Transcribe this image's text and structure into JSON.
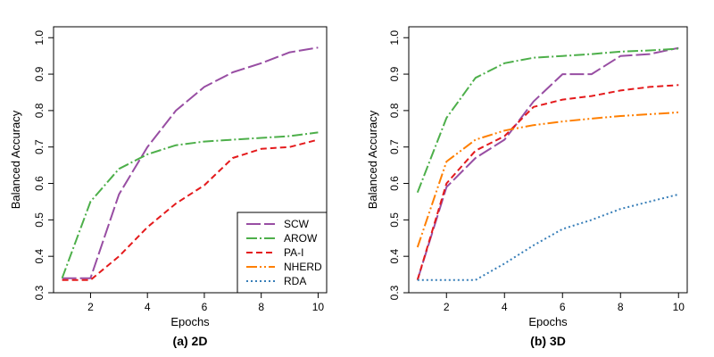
{
  "chart_data": [
    {
      "type": "line",
      "caption": "(a) 2D",
      "xlabel": "Epochs",
      "ylabel": "Balanced Accuracy",
      "xlim": [
        0.7,
        10.3
      ],
      "ylim": [
        0.3,
        1.03
      ],
      "xticks": [
        "2",
        "4",
        "6",
        "8",
        "10"
      ],
      "yticks": [
        "0.3",
        "0.4",
        "0.5",
        "0.6",
        "0.7",
        "0.8",
        "0.9",
        "1.0"
      ],
      "legend": "bottom-right",
      "x": [
        1,
        2,
        3,
        4,
        5,
        6,
        7,
        8,
        9,
        10
      ],
      "series": [
        {
          "name": "SCW",
          "color": "#984ea3",
          "values": [
            0.34,
            0.34,
            0.57,
            0.7,
            0.8,
            0.865,
            0.905,
            0.93,
            0.96,
            0.973
          ]
        },
        {
          "name": "AROW",
          "color": "#4daf4a",
          "values": [
            0.34,
            0.55,
            0.64,
            0.68,
            0.705,
            0.715,
            0.72,
            0.725,
            0.73,
            0.74
          ]
        },
        {
          "name": "PA-I",
          "color": "#e41a1c",
          "values": [
            0.335,
            0.335,
            0.4,
            0.48,
            0.545,
            0.595,
            0.67,
            0.695,
            0.7,
            0.72
          ]
        }
      ],
      "legend_entries": [
        {
          "name": "SCW",
          "color": "#984ea3"
        },
        {
          "name": "AROW",
          "color": "#4daf4a"
        },
        {
          "name": "PA-I",
          "color": "#e41a1c"
        },
        {
          "name": "NHERD",
          "color": "#ff7f00"
        },
        {
          "name": "RDA",
          "color": "#377eb8"
        }
      ]
    },
    {
      "type": "line",
      "caption": "(b) 3D",
      "xlabel": "Epochs",
      "ylabel": "Balanced Accuracy",
      "xlim": [
        0.7,
        10.3
      ],
      "ylim": [
        0.3,
        1.03
      ],
      "xticks": [
        "2",
        "4",
        "6",
        "8",
        "10"
      ],
      "yticks": [
        "0.3",
        "0.4",
        "0.5",
        "0.6",
        "0.7",
        "0.8",
        "0.9",
        "1.0"
      ],
      "x": [
        1,
        2,
        3,
        4,
        5,
        6,
        7,
        8,
        9,
        10
      ],
      "series": [
        {
          "name": "SCW",
          "color": "#984ea3",
          "values": [
            0.335,
            0.59,
            0.67,
            0.72,
            0.825,
            0.9,
            0.9,
            0.95,
            0.955,
            0.972
          ]
        },
        {
          "name": "AROW",
          "color": "#4daf4a",
          "values": [
            0.575,
            0.78,
            0.89,
            0.93,
            0.945,
            0.95,
            0.955,
            0.962,
            0.965,
            0.97
          ]
        },
        {
          "name": "PA-I",
          "color": "#e41a1c",
          "values": [
            0.335,
            0.6,
            0.69,
            0.73,
            0.81,
            0.83,
            0.84,
            0.855,
            0.865,
            0.87
          ]
        },
        {
          "name": "NHERD",
          "color": "#ff7f00",
          "values": [
            0.425,
            0.66,
            0.72,
            0.745,
            0.76,
            0.77,
            0.778,
            0.785,
            0.79,
            0.795
          ]
        },
        {
          "name": "RDA",
          "color": "#377eb8",
          "values": [
            0.335,
            0.335,
            0.335,
            0.38,
            0.43,
            0.475,
            0.5,
            0.53,
            0.55,
            0.57
          ]
        }
      ]
    }
  ]
}
